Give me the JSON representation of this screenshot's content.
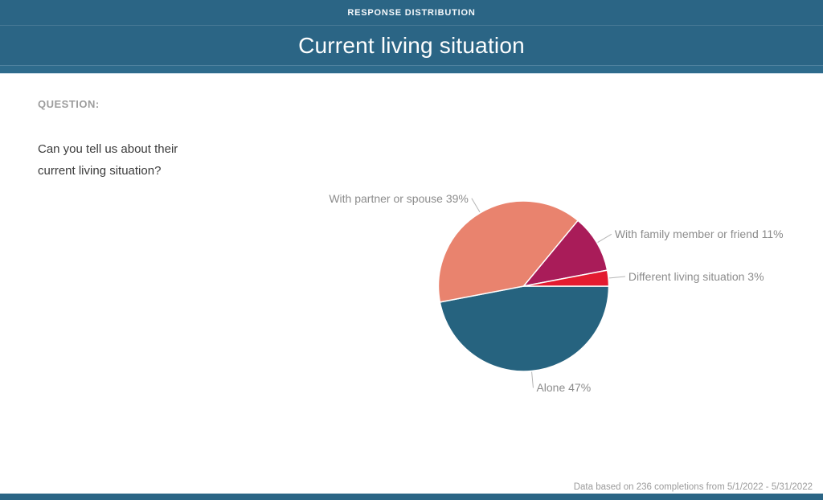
{
  "header": {
    "kicker": "RESPONSE DISTRIBUTION",
    "title": "Current living situation"
  },
  "question": {
    "label": "QUESTION:",
    "text": "Can you tell us about their current living situation?"
  },
  "footer": {
    "note": "Data based on 236 completions from 5/1/2022 - 5/31/2022"
  },
  "colors": {
    "header_bg": "#2B6585",
    "header_accent": "#2E6B8C",
    "slice_alone": "#26637F",
    "slice_partner": "#E9836E",
    "slice_family": "#A91C59",
    "slice_different": "#E31B30",
    "label_gray": "#8C8C8C",
    "leader_line": "#B5B5B5"
  },
  "chart_data": {
    "type": "pie",
    "title": "Current living situation",
    "unit": "%",
    "start_angle_deg": 0,
    "direction": "clockwise",
    "label_format": "{label} {value}%",
    "slices": [
      {
        "label": "Alone",
        "value": 47,
        "color": "#26637F"
      },
      {
        "label": "With partner or spouse",
        "value": 39,
        "color": "#E9836E"
      },
      {
        "label": "With family member or friend",
        "value": 11,
        "color": "#A91C59"
      },
      {
        "label": "Different living situation",
        "value": 3,
        "color": "#E31B30"
      }
    ]
  }
}
